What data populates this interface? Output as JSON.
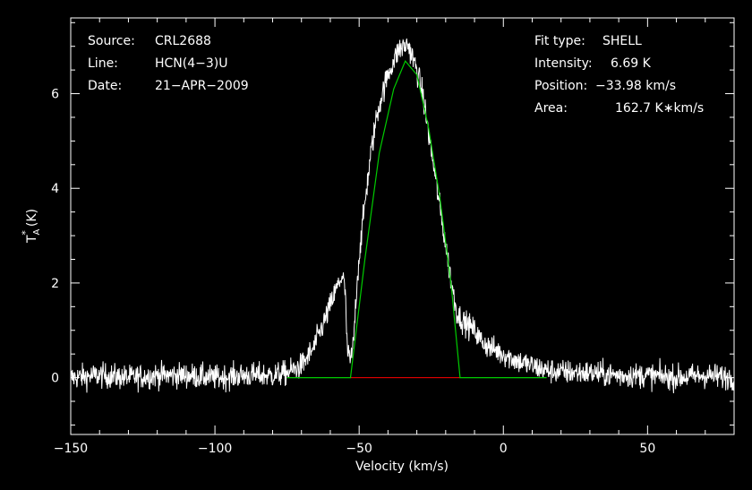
{
  "header": {
    "source_label": "Source:",
    "source_value": "CRL2688",
    "line_label": "Line:",
    "line_value": "HCN(4−3)U",
    "date_label": "Date:",
    "date_value": "21−APR−2009"
  },
  "fit": {
    "type_label": "Fit type:",
    "type_value": "SHELL",
    "intensity_label": "Intensity:",
    "intensity_value": "6.69 K",
    "position_label": "Position:",
    "position_value": "−33.98 km/s",
    "area_label": "Area:",
    "area_value": "162.7 K∗km/s"
  },
  "chart_data": {
    "type": "line",
    "xlabel": "Velocity (km/s)",
    "ylabel_main": "T",
    "ylabel_sup": "*",
    "ylabel_sub": "A",
    "ylabel_unit": "(K)",
    "xlim": [
      -150,
      80
    ],
    "ylim": [
      -1.2,
      7.6
    ],
    "x_ticks": [
      -150,
      -100,
      -50,
      0,
      50
    ],
    "x_tick_labels": [
      "−150",
      "−100",
      "−50",
      "0",
      "50"
    ],
    "y_ticks": [
      0,
      2,
      4,
      6
    ],
    "y_tick_labels": [
      "0",
      "2",
      "4",
      "6"
    ],
    "colors": {
      "spectrum": "#ffffff",
      "fit": "#00cc00",
      "baseline": "#ff0000",
      "frame": "#ffffff"
    },
    "baseline": {
      "x": [
        -53,
        -15
      ],
      "y": 0
    },
    "series": [
      {
        "x": [
          -150,
          -140,
          -130,
          -120,
          -110,
          -100,
          -90,
          -80,
          -75,
          -70,
          -66,
          -62,
          -58,
          -56,
          -55,
          -54,
          -53,
          -52,
          -51,
          -50,
          -48,
          -46,
          -44,
          -42,
          -40,
          -38,
          -36,
          -34,
          -33,
          -32,
          -30,
          -28,
          -26,
          -24,
          -22,
          -20,
          -18,
          -16,
          -14,
          -12,
          -10,
          -8,
          -5,
          0,
          5,
          10,
          15,
          20,
          30,
          40,
          50,
          60,
          70,
          80
        ],
        "y": [
          0.0,
          0.05,
          0.0,
          0.05,
          0.05,
          0.0,
          0.05,
          0.05,
          0.1,
          0.25,
          0.6,
          1.2,
          1.85,
          2.15,
          1.95,
          0.5,
          0.35,
          0.7,
          1.8,
          2.55,
          3.7,
          4.7,
          5.5,
          6.0,
          6.4,
          6.7,
          6.95,
          7.0,
          7.05,
          6.85,
          6.5,
          6.0,
          5.2,
          4.4,
          3.6,
          2.8,
          2.0,
          1.35,
          1.2,
          1.1,
          1.0,
          0.8,
          0.65,
          0.5,
          0.35,
          0.25,
          0.15,
          0.12,
          0.1,
          0.05,
          0.05,
          0.0,
          0.05,
          0.0
        ]
      },
      {
        "x": [
          -75,
          -53,
          -48,
          -43,
          -38,
          -34,
          -30,
          -26,
          -22,
          -18,
          -15,
          15
        ],
        "y": [
          0,
          0,
          2.5,
          4.75,
          6.1,
          6.69,
          6.4,
          5.3,
          3.8,
          1.9,
          0,
          0
        ]
      }
    ]
  }
}
